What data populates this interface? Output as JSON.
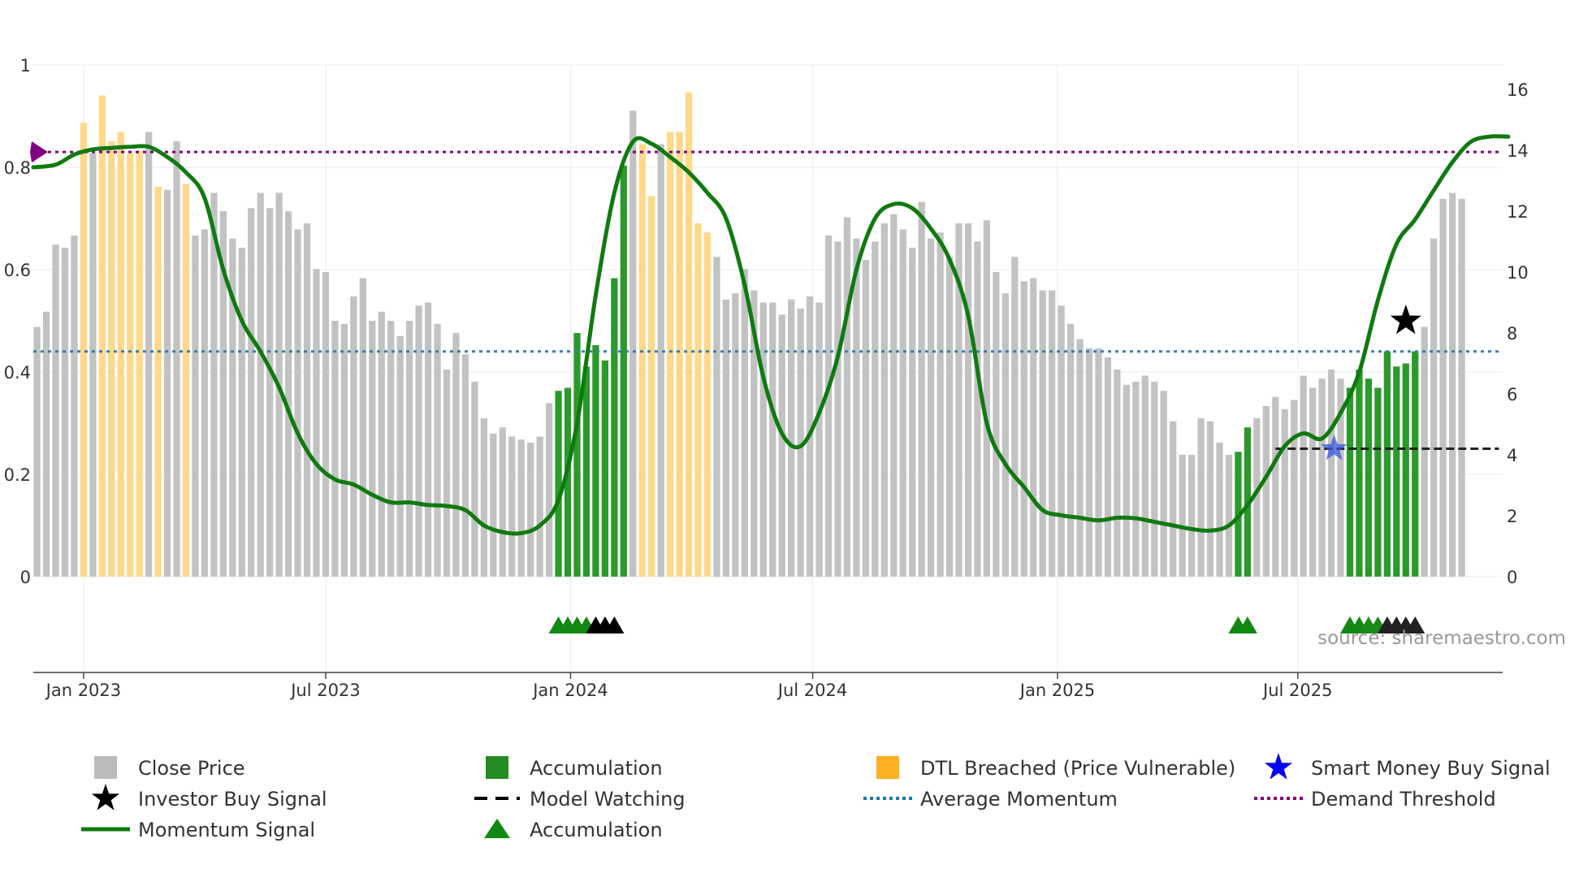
{
  "chart_data": {
    "type": "bar",
    "source": "source: sharemaestro.com",
    "left_axis": {
      "range": [
        0,
        1
      ],
      "ticks": [
        "0",
        "0.2",
        "0.4",
        "0.6",
        "0.8",
        "1"
      ],
      "tick_values": [
        0,
        0.2,
        0.4,
        0.6,
        0.8,
        1
      ]
    },
    "right_axis": {
      "range": [
        0,
        16
      ],
      "ticks": [
        "0",
        "2",
        "4",
        "6",
        "8",
        "10",
        "12",
        "14",
        "16"
      ],
      "tick_values": [
        0,
        2,
        4,
        6,
        8,
        10,
        12,
        14,
        16
      ]
    },
    "x_axis": {
      "start_week": -5.4,
      "end_week": 152.4,
      "ticks": [
        {
          "label": "Jan 2023",
          "week": 0
        },
        {
          "label": "Jul 2023",
          "week": 26
        },
        {
          "label": "Jan 2024",
          "week": 52.3
        },
        {
          "label": "Jul 2024",
          "week": 78.3
        },
        {
          "label": "Jan 2025",
          "week": 104.6
        },
        {
          "label": "Jul 2025",
          "week": 130.4
        }
      ]
    },
    "close_price": {
      "start_week": -5,
      "values": [
        8.2,
        8.7,
        10.9,
        10.8,
        11.2,
        14.9,
        13.9,
        15.8,
        14.3,
        14.6,
        13.9,
        14.0,
        14.6,
        12.8,
        12.7,
        14.3,
        12.9,
        11.2,
        11.4,
        12.6,
        12.0,
        11.1,
        10.8,
        12.1,
        12.6,
        12.1,
        12.6,
        12.0,
        11.4,
        11.6,
        10.1,
        10.0,
        8.4,
        8.3,
        9.2,
        9.8,
        8.4,
        8.7,
        8.4,
        7.9,
        8.4,
        8.9,
        9.0,
        8.3,
        6.8,
        8.0,
        7.3,
        6.4,
        5.2,
        4.7,
        4.9,
        4.6,
        4.5,
        4.4,
        4.6,
        5.7,
        6.1,
        6.2,
        8.0,
        6.9,
        7.6,
        7.1,
        9.8,
        13.5,
        15.3,
        14.2,
        12.5,
        14.2,
        14.6,
        14.6,
        15.9,
        11.6,
        11.3,
        10.5,
        9.1,
        9.3,
        10.1,
        9.4,
        9.0,
        9.0,
        8.6,
        9.1,
        8.8,
        9.2,
        9.0,
        11.2,
        11.0,
        11.8,
        11.1,
        10.4,
        11.0,
        11.6,
        11.9,
        11.4,
        10.8,
        12.3,
        11.1,
        11.3,
        10.5,
        11.6,
        11.6,
        11.0,
        11.7,
        10.0,
        9.3,
        10.5,
        9.7,
        9.8,
        9.4,
        9.4,
        8.9,
        8.3,
        7.8,
        7.5,
        7.5,
        7.2,
        6.8,
        6.3,
        6.4,
        6.6,
        6.4,
        6.1,
        5.1,
        4.0,
        4.0,
        5.2,
        5.1,
        4.4,
        4.0,
        4.1,
        4.9,
        5.2,
        5.6,
        5.9,
        5.5,
        5.8,
        6.6,
        6.2,
        6.5,
        6.8,
        6.5,
        6.2,
        6.8,
        6.5,
        6.2,
        7.4,
        6.9,
        7.0,
        7.4,
        8.2,
        11.1,
        12.4,
        12.6,
        12.4
      ],
      "accumulation_weeks": [
        51,
        52,
        53,
        54,
        55,
        56,
        57,
        58,
        124,
        125,
        136,
        137,
        138,
        139,
        140,
        141,
        142,
        143
      ],
      "dtl_breached_weeks": [
        0,
        2,
        3,
        4,
        5,
        6,
        8,
        11,
        60,
        61,
        63,
        64,
        65,
        66,
        67
      ]
    },
    "momentum": {
      "weeks": [
        -5.4,
        -3,
        -1,
        1,
        3,
        5,
        7,
        9,
        11,
        13,
        15,
        17,
        19,
        21,
        23,
        25,
        27,
        29,
        31,
        33,
        35,
        37,
        39,
        41,
        43,
        45,
        47,
        49,
        51,
        53,
        55,
        57,
        59,
        61,
        63,
        65,
        67,
        69,
        71,
        73,
        75,
        77,
        79,
        81,
        83,
        85,
        87,
        89,
        91,
        93,
        95,
        97,
        99,
        101,
        103,
        105,
        107,
        109,
        111,
        113,
        115,
        117,
        119,
        121,
        123,
        125,
        127,
        129,
        131,
        133,
        135,
        137,
        139,
        141,
        143,
        145,
        147,
        149,
        151,
        153
      ],
      "values": [
        0.8,
        0.805,
        0.825,
        0.835,
        0.838,
        0.84,
        0.84,
        0.82,
        0.79,
        0.74,
        0.6,
        0.5,
        0.44,
        0.37,
        0.28,
        0.22,
        0.19,
        0.18,
        0.16,
        0.145,
        0.145,
        0.14,
        0.138,
        0.13,
        0.1,
        0.087,
        0.085,
        0.1,
        0.15,
        0.3,
        0.55,
        0.75,
        0.85,
        0.846,
        0.82,
        0.79,
        0.75,
        0.7,
        0.57,
        0.39,
        0.28,
        0.255,
        0.32,
        0.43,
        0.6,
        0.7,
        0.728,
        0.72,
        0.68,
        0.62,
        0.51,
        0.3,
        0.22,
        0.175,
        0.13,
        0.12,
        0.115,
        0.11,
        0.115,
        0.114,
        0.107,
        0.1,
        0.093,
        0.09,
        0.1,
        0.14,
        0.195,
        0.255,
        0.28,
        0.27,
        0.32,
        0.4,
        0.54,
        0.65,
        0.698,
        0.755,
        0.81,
        0.85,
        0.86,
        0.86
      ]
    },
    "average_momentum": 0.44,
    "demand_threshold": 0.83,
    "model_watching": {
      "value": 0.25,
      "from_week": 128,
      "to_week": 152
    },
    "investor_buy_signal": {
      "week": 142,
      "value": 0.5
    },
    "smart_money_buy_signal": {
      "week": 134.3,
      "value": 0.25
    },
    "accumulation_markers": [
      {
        "week": 51.0,
        "color": "#118811"
      },
      {
        "week": 52.0,
        "color": "#118811"
      },
      {
        "week": 53.0,
        "color": "#118811"
      },
      {
        "week": 54.0,
        "color": "#118811"
      },
      {
        "week": 55.0,
        "color": "#000000"
      },
      {
        "week": 56.0,
        "color": "#000000"
      },
      {
        "week": 57.0,
        "color": "#000000"
      },
      {
        "week": 124.0,
        "color": "#118811"
      },
      {
        "week": 125.0,
        "color": "#118811"
      },
      {
        "week": 136.0,
        "color": "#118811"
      },
      {
        "week": 137.0,
        "color": "#118811"
      },
      {
        "week": 138.0,
        "color": "#1a8a1a"
      },
      {
        "week": 139.0,
        "color": "#1a8a1a"
      },
      {
        "week": 140.0,
        "color": "#222222"
      },
      {
        "week": 141.0,
        "color": "#222222"
      },
      {
        "week": 142.0,
        "color": "#222222"
      },
      {
        "week": 143.0,
        "color": "#222222"
      }
    ],
    "legend": [
      {
        "label": "Close Price",
        "symbol": "square",
        "color": "#bbbbbb"
      },
      {
        "label": "Accumulation",
        "symbol": "square",
        "color": "#228b22"
      },
      {
        "label": "DTL Breached (Price Vulnerable)",
        "symbol": "square",
        "color": "#ffb020"
      },
      {
        "label": "Smart Money Buy Signal",
        "symbol": "star",
        "color": "#0000ee"
      },
      {
        "label": "Investor Buy Signal",
        "symbol": "star",
        "color": "#000000"
      },
      {
        "label": "Model Watching",
        "symbol": "dash",
        "color": "#000000"
      },
      {
        "label": "Average Momentum",
        "symbol": "dot",
        "color": "#1f77b4"
      },
      {
        "label": "Demand Threshold",
        "symbol": "dot",
        "color": "#800080"
      },
      {
        "label": "Momentum Signal",
        "symbol": "line",
        "color": "#0f7a0f"
      },
      {
        "label": "Accumulation",
        "symbol": "triangle",
        "color": "#118811"
      }
    ],
    "colors": {
      "close_price": "#c2c2c2",
      "accumulation": "#2a9a2a",
      "dtl_breached": "#ffd88a",
      "momentum": "#0f7a0f",
      "momentum_faded": "#3d8a3d",
      "average_momentum": "#3a7fa8",
      "demand_threshold": "#800080"
    }
  }
}
